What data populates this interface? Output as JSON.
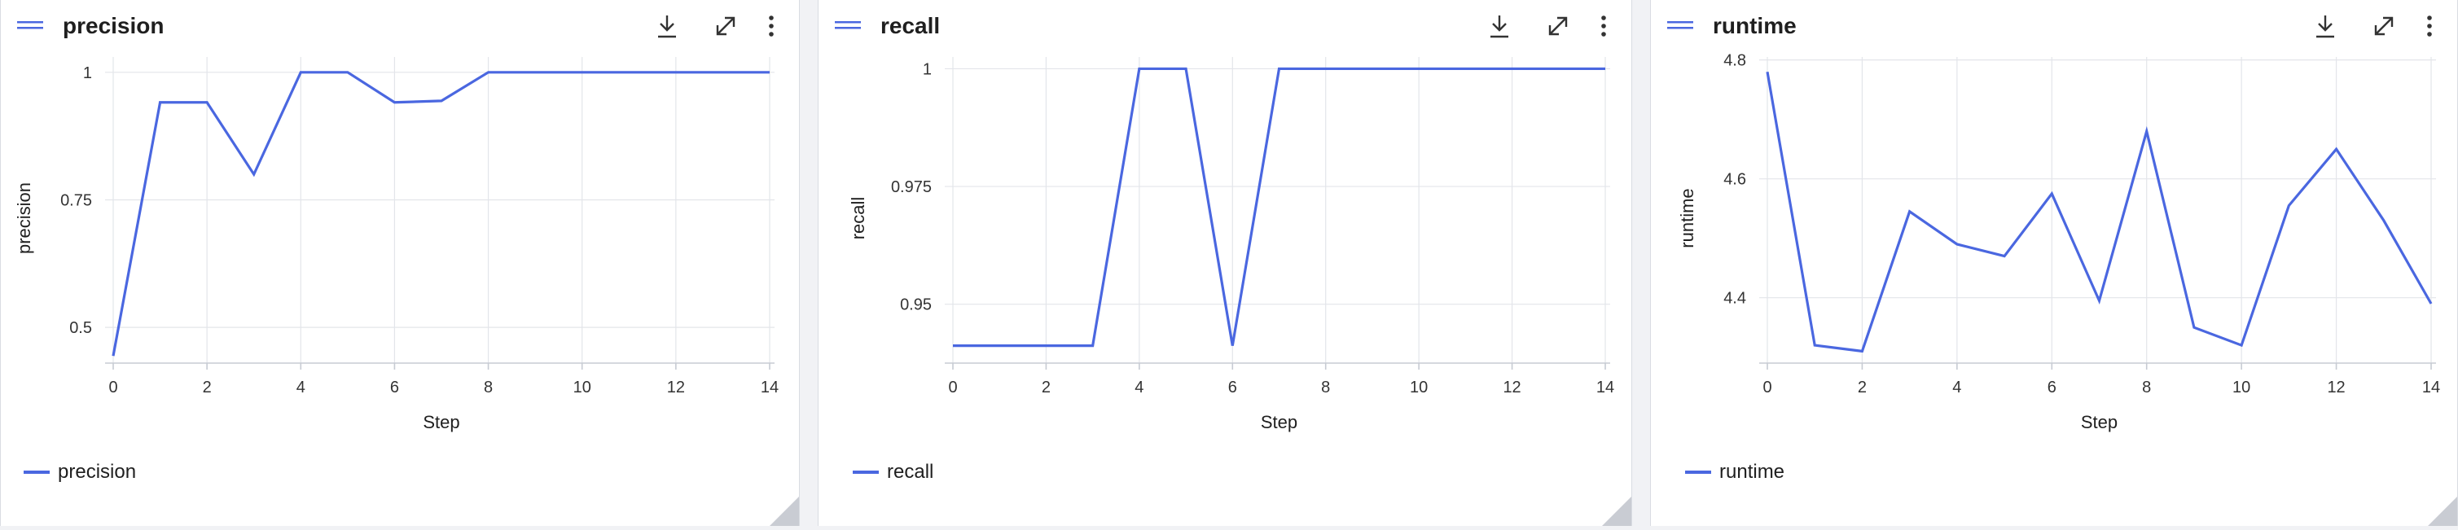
{
  "colors": {
    "accent": "#4a67e0",
    "grid": "#e3e5ea",
    "axis": "#c7cbd3"
  },
  "icons": {
    "drag": "drag-handle-icon",
    "download": "download-icon",
    "expand": "expand-icon",
    "menu": "more-vertical-icon"
  },
  "chart_data": [
    {
      "type": "line",
      "title": "precision",
      "xlabel": "Step",
      "ylabel": "precision",
      "x": [
        0,
        1,
        2,
        3,
        4,
        5,
        6,
        7,
        8,
        9,
        10,
        11,
        12,
        13,
        14
      ],
      "xticks": [
        0,
        2,
        4,
        6,
        8,
        10,
        12,
        14
      ],
      "xlim": [
        0,
        14
      ],
      "yticks": [
        0.5,
        0.75,
        1
      ],
      "ytick_labels": [
        "0.5",
        "0.75",
        "1"
      ],
      "ylim": [
        0.43,
        1.03
      ],
      "series": [
        {
          "name": "precision",
          "values": [
            0.444,
            0.941,
            0.941,
            0.8,
            1,
            1,
            0.941,
            0.944,
            1,
            1,
            1,
            1,
            1,
            1,
            1
          ]
        }
      ],
      "legend": "bottom-left",
      "grid": true
    },
    {
      "type": "line",
      "title": "recall",
      "xlabel": "Step",
      "ylabel": "recall",
      "x": [
        0,
        1,
        2,
        3,
        4,
        5,
        6,
        7,
        8,
        9,
        10,
        11,
        12,
        13,
        14
      ],
      "xticks": [
        0,
        2,
        4,
        6,
        8,
        10,
        12,
        14
      ],
      "xlim": [
        0,
        14
      ],
      "yticks": [
        0.95,
        0.975,
        1
      ],
      "ytick_labels": [
        "0.95",
        "0.975",
        "1"
      ],
      "ylim": [
        0.9375,
        1.0025
      ],
      "series": [
        {
          "name": "recall",
          "values": [
            0.9412,
            0.9412,
            0.9412,
            0.9412,
            1,
            1,
            0.9412,
            1,
            1,
            1,
            1,
            1,
            1,
            1,
            1
          ]
        }
      ],
      "legend": "bottom-left",
      "grid": true
    },
    {
      "type": "line",
      "title": "runtime",
      "xlabel": "Step",
      "ylabel": "runtime",
      "x": [
        0,
        1,
        2,
        3,
        4,
        5,
        6,
        7,
        8,
        9,
        10,
        11,
        12,
        13,
        14
      ],
      "xticks": [
        0,
        2,
        4,
        6,
        8,
        10,
        12,
        14
      ],
      "xlim": [
        0,
        14
      ],
      "yticks": [
        4.4,
        4.6,
        4.8
      ],
      "ytick_labels": [
        "4.4",
        "4.6",
        "4.8"
      ],
      "ylim": [
        4.29,
        4.805
      ],
      "series": [
        {
          "name": "runtime",
          "values": [
            4.78,
            4.32,
            4.31,
            4.545,
            4.49,
            4.47,
            4.575,
            4.395,
            4.68,
            4.35,
            4.32,
            4.555,
            4.65,
            4.53,
            4.39
          ]
        }
      ],
      "legend": "bottom-left",
      "grid": true
    }
  ]
}
